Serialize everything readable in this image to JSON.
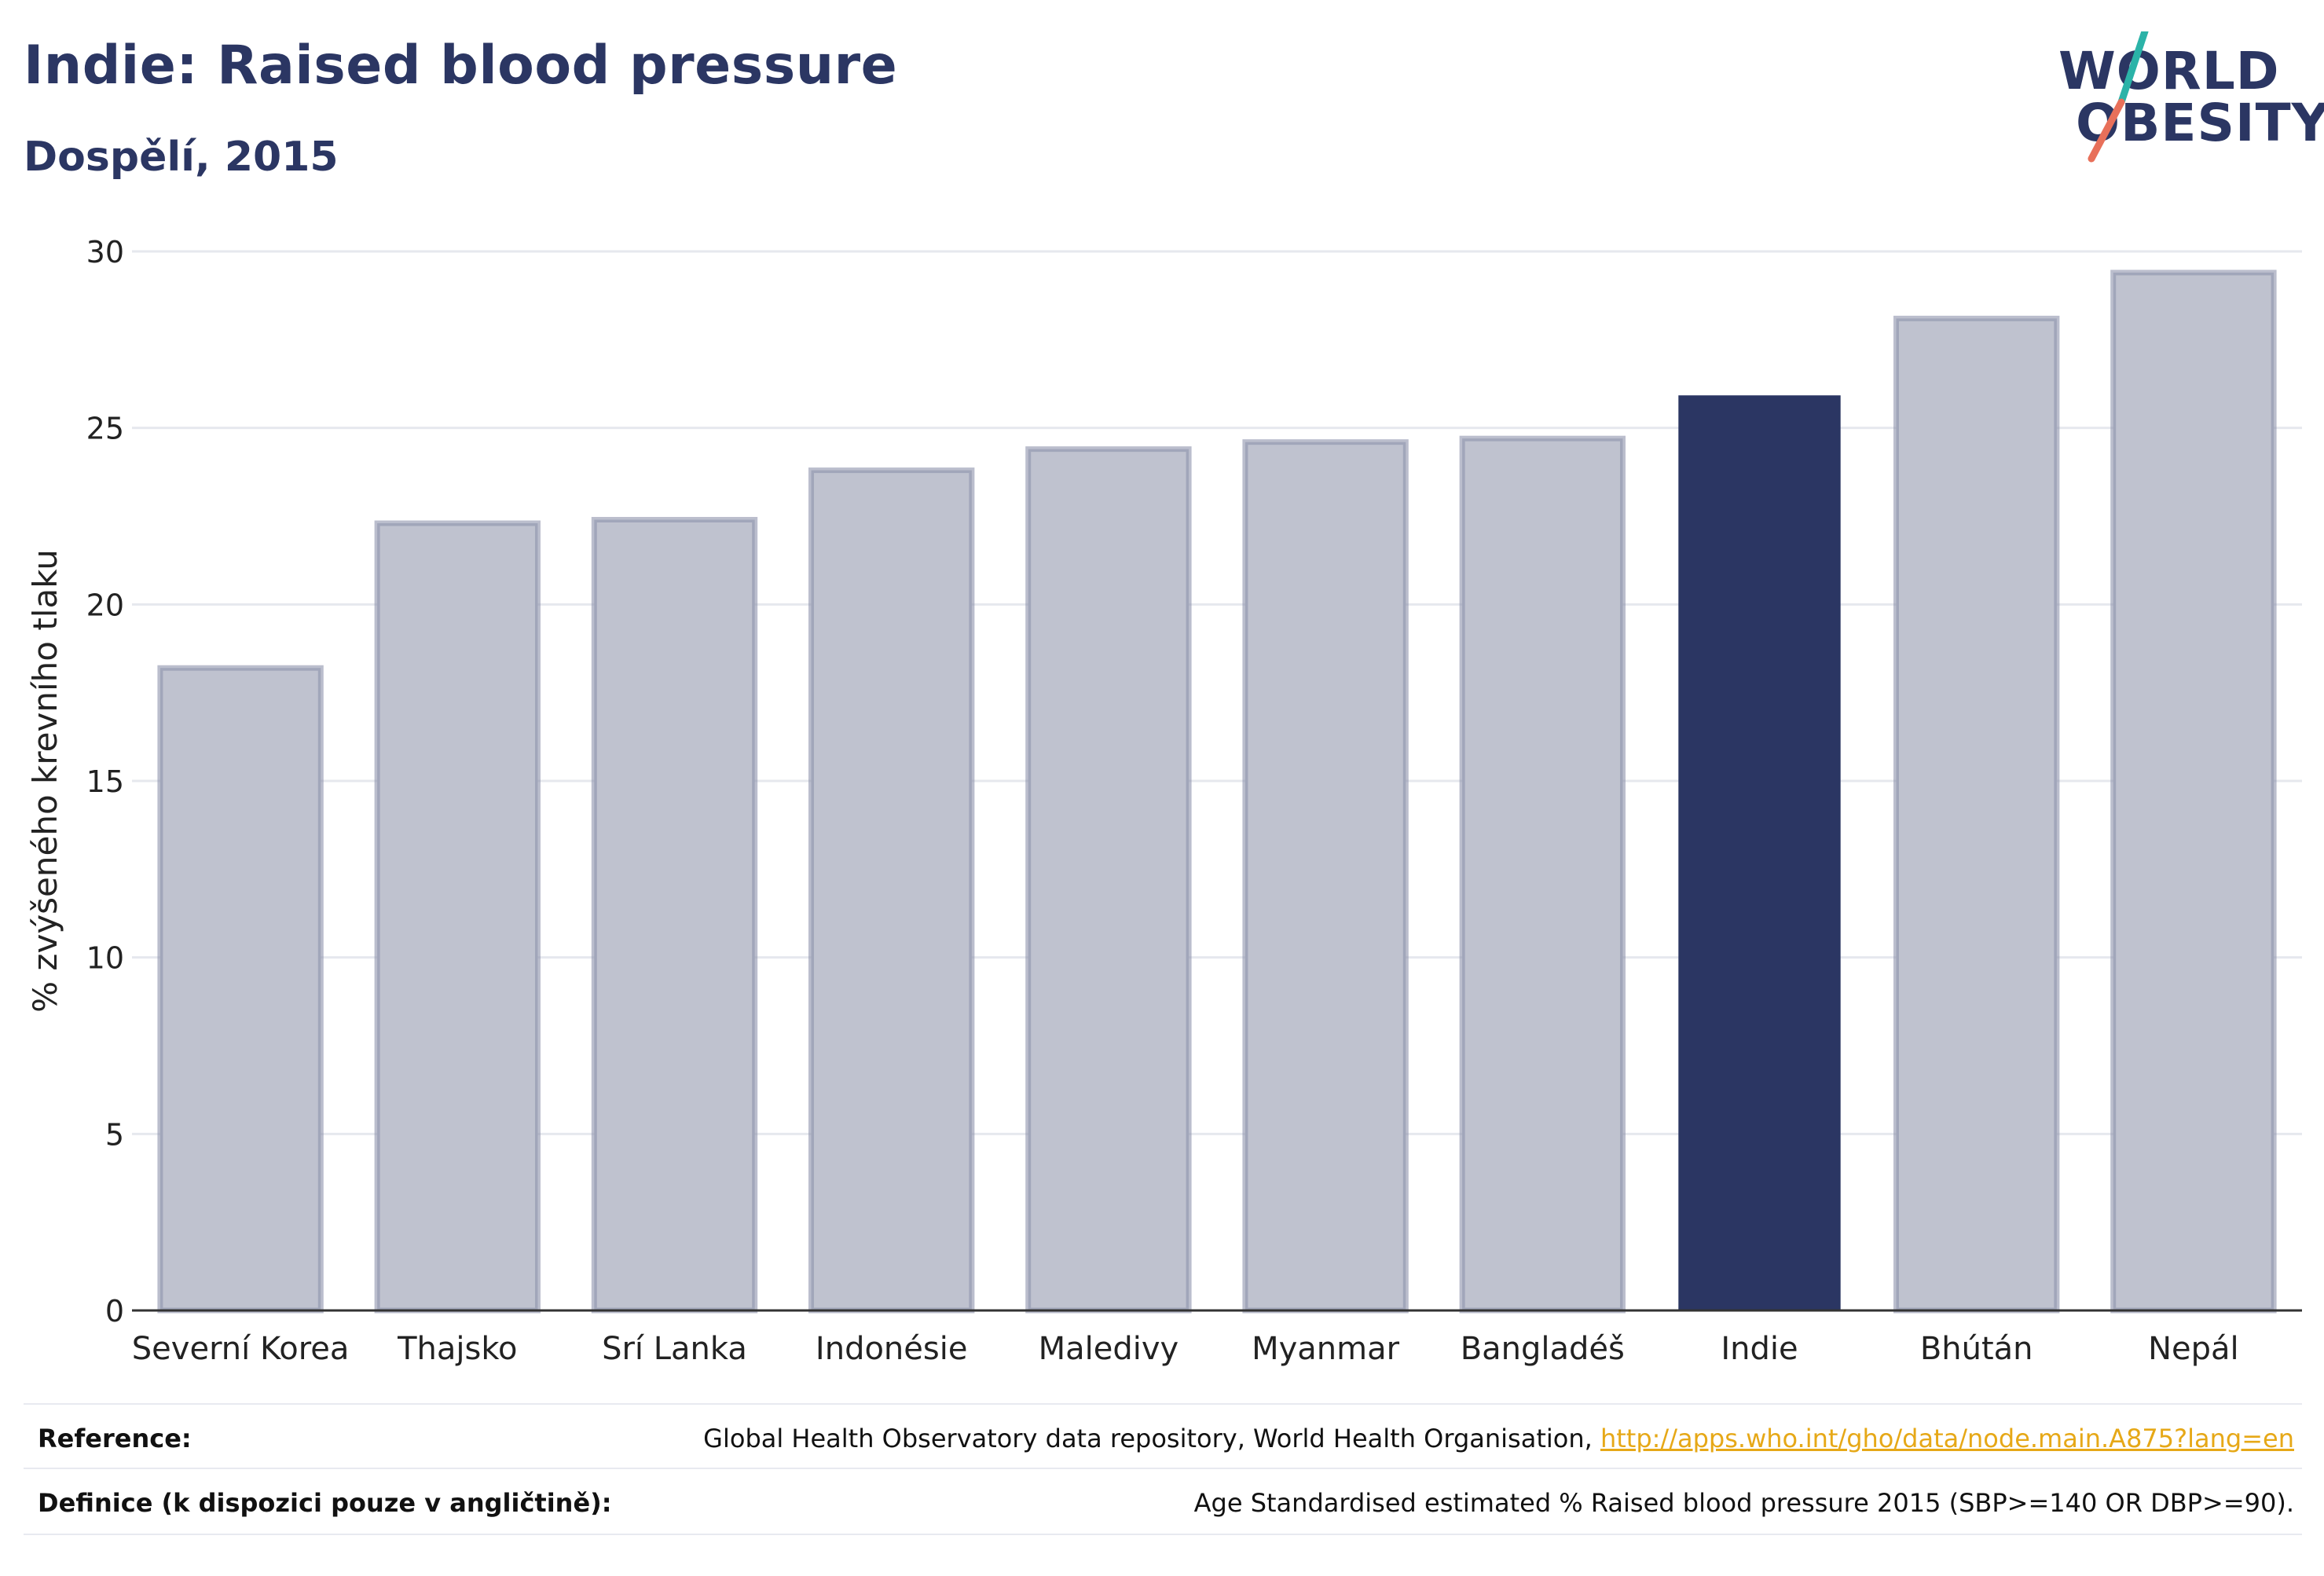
{
  "header": {
    "title": "Indie: Raised blood pressure",
    "subtitle": "Dospělí, 2015"
  },
  "logo": {
    "line1": "WORLD",
    "line2": "OBESITY",
    "colors": {
      "text": "#2b3663",
      "slash_top": "#2bb3a8",
      "slash_bottom": "#e8705a"
    }
  },
  "chart_data": {
    "type": "bar",
    "categories": [
      "Severní Korea",
      "Thajsko",
      "Srí Lanka",
      "Indonésie",
      "Maledivy",
      "Myanmar",
      "Bangladéš",
      "Indie",
      "Bhútán",
      "Nepál"
    ],
    "values": [
      18.2,
      22.3,
      22.4,
      23.8,
      24.4,
      24.6,
      24.7,
      25.9,
      28.1,
      29.4
    ],
    "highlight": "Indie",
    "ylabel": "% zvýšeného krevního tlaku",
    "xlabel": "",
    "ylim": [
      0,
      30
    ],
    "yticks": [
      0,
      5,
      10,
      15,
      20,
      25,
      30
    ],
    "grid": true,
    "colors": {
      "bar": "#bfc2cf",
      "bar_border": "#8d92ab",
      "highlight": "#2b3663",
      "grid": "#e6e8ee"
    }
  },
  "footer": {
    "reference_label": "Reference:",
    "reference_text": "Global Health Observatory data repository, World Health Organisation, ",
    "reference_link": "http://apps.who.int/gho/data/node.main.A875?lang=en",
    "definition_label": "Definice (k dispozici pouze v angličtině):",
    "definition_text": "Age Standardised estimated % Raised blood pressure 2015 (SBP>=140 OR DBP>=90)."
  }
}
